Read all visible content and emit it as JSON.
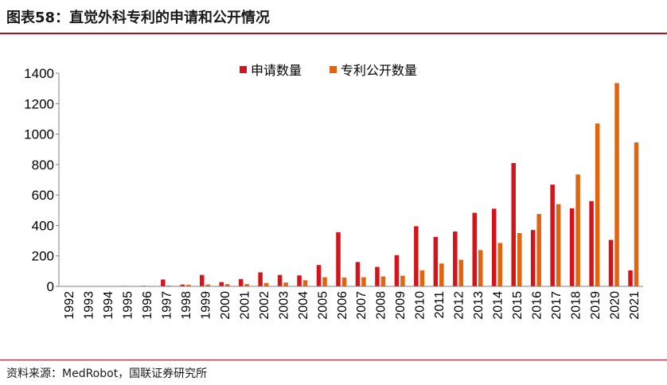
{
  "header": {
    "title": "图表58：直觉外科专利的申请和公开情况"
  },
  "footer": {
    "source": "资料来源：MedRobot，国联证券研究所"
  },
  "colors": {
    "accent": "#b5101e",
    "series_apply": "#d3141b",
    "series_publish": "#e2640f"
  },
  "chart_data": {
    "type": "bar",
    "title": "",
    "xlabel": "",
    "ylabel": "",
    "ylim": [
      0,
      1400
    ],
    "yticks": [
      0,
      200,
      400,
      600,
      800,
      1000,
      1200,
      1400
    ],
    "grid": false,
    "legend_position": "top-center",
    "categories": [
      "1992",
      "1993",
      "1994",
      "1995",
      "1996",
      "1997",
      "1998",
      "1999",
      "2000",
      "2001",
      "2002",
      "2003",
      "2004",
      "2005",
      "2006",
      "2007",
      "2008",
      "2009",
      "2010",
      "2011",
      "2012",
      "2013",
      "2014",
      "2015",
      "2016",
      "2017",
      "2018",
      "2019",
      "2020",
      "2021"
    ],
    "series": [
      {
        "name": "申请数量",
        "color": "#d3141b",
        "values": [
          1,
          1,
          2,
          3,
          4,
          45,
          12,
          75,
          28,
          48,
          92,
          75,
          72,
          140,
          355,
          160,
          128,
          205,
          395,
          325,
          360,
          483,
          510,
          810,
          370,
          668,
          512,
          560,
          305,
          105
        ]
      },
      {
        "name": "专利公开数量",
        "color": "#e2640f",
        "values": [
          0,
          0,
          1,
          2,
          3,
          5,
          10,
          12,
          15,
          15,
          22,
          25,
          40,
          60,
          58,
          60,
          65,
          70,
          105,
          150,
          175,
          238,
          285,
          350,
          475,
          540,
          735,
          1070,
          1335,
          945
        ]
      }
    ]
  }
}
